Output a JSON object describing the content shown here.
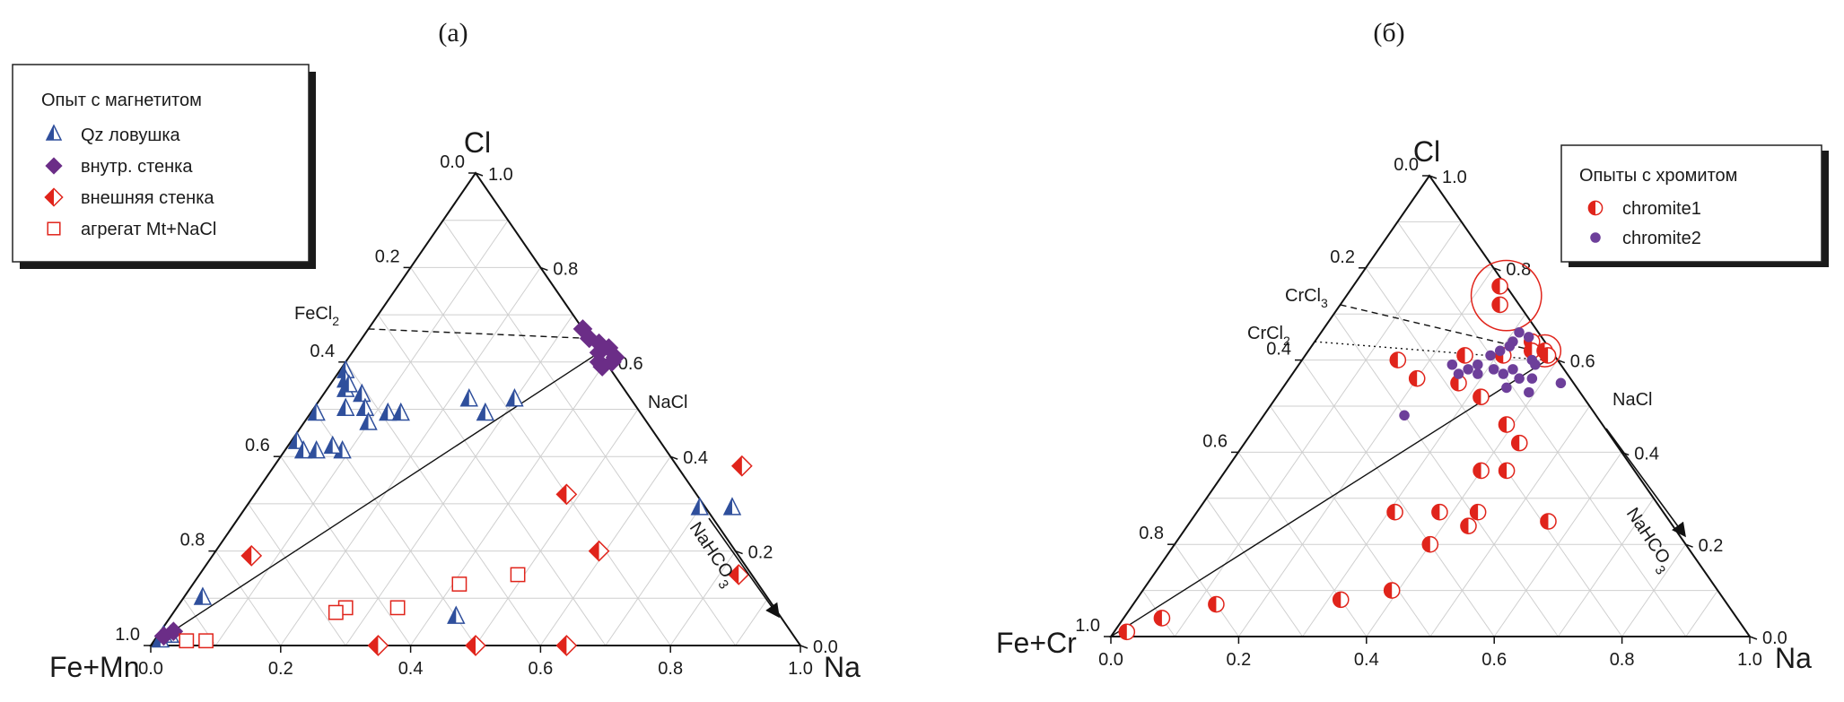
{
  "colors": {
    "blue": "#2f4f9c",
    "purple": "#6b2d87",
    "purple_light": "#6d3f9a",
    "red": "#e0241b",
    "open_square": "#e0241b"
  },
  "chart_data": [
    {
      "type": "scatter",
      "subtype": "ternary",
      "panel_label": "(а)",
      "vertices": {
        "top": "Cl",
        "left": "Fe+Mn",
        "right": "Na"
      },
      "ticks": {
        "cl_axis": [
          "0.0",
          "0.2",
          "0.4",
          "0.6",
          "0.8",
          "1.0"
        ],
        "na_axis": [
          "1.0",
          "0.8",
          "0.6",
          "0.4",
          "0.2",
          "0.0"
        ],
        "bottom_axis": [
          "0.0",
          "0.2",
          "0.4",
          "0.6",
          "0.8",
          "1.0"
        ]
      },
      "annotations": {
        "fecl2": "FeCl",
        "fecl2_sub": "2",
        "nacl": "NaCl",
        "nahco3": "NaHCO",
        "nahco3_sub": "3"
      },
      "legend": {
        "title": "Опыт с магнетитом",
        "placement": "top-left",
        "items": [
          "Qz ловушка",
          "внутр. стенка",
          "внешняя стенка",
          "агрегат Mt+NaCl"
        ]
      },
      "axes_note": "x = Na fraction, y = Cl fraction",
      "series": [
        {
          "name": "Qz ловушка",
          "marker": "half-triangle",
          "points": [
            [
              0.09,
              0.41
            ],
            [
              0.03,
              0.54
            ],
            [
              0.01,
              0.58
            ],
            [
              0.02,
              0.56
            ],
            [
              0.03,
              0.55
            ],
            [
              0.06,
              0.53
            ],
            [
              0.01,
              0.49
            ],
            [
              0.05,
              0.5
            ],
            [
              0.08,
              0.5
            ],
            [
              0.01,
              0.43
            ],
            [
              0.03,
              0.41
            ],
            [
              0.05,
              0.41
            ],
            [
              0.07,
              0.42
            ],
            [
              0.1,
              0.47
            ],
            [
              0.12,
              0.49
            ],
            [
              0.14,
              0.49
            ],
            [
              0.23,
              0.52
            ],
            [
              0.27,
              0.49
            ],
            [
              0.3,
              0.52
            ],
            [
              0.7,
              0.29
            ],
            [
              0.75,
              0.29
            ],
            [
              0.03,
              0.1
            ],
            [
              0.01,
              0.01
            ],
            [
              0.02,
              0.02
            ],
            [
              0.01,
              0.02
            ],
            [
              0.44,
              0.06
            ]
          ]
        },
        {
          "name": "внутр. стенка",
          "marker": "diamond",
          "points": [
            [
              0.33,
              0.67
            ],
            [
              0.35,
              0.65
            ],
            [
              0.37,
              0.64
            ],
            [
              0.38,
              0.62
            ],
            [
              0.39,
              0.6
            ],
            [
              0.4,
              0.59
            ],
            [
              0.41,
              0.6
            ],
            [
              0.41,
              0.61
            ],
            [
              0.39,
              0.63
            ],
            [
              0.02,
              0.03
            ],
            [
              0.01,
              0.02
            ]
          ]
        },
        {
          "name": "внешняя стенка",
          "marker": "half-diamond",
          "points": [
            [
              0.72,
              0.38
            ],
            [
              0.48,
              0.32
            ],
            [
              0.59,
              0.2
            ],
            [
              0.83,
              0.15
            ],
            [
              0.06,
              0.19
            ],
            [
              0.35,
              0.0
            ],
            [
              0.5,
              0.0
            ],
            [
              0.64,
              0.0
            ]
          ]
        },
        {
          "name": "агрегат Mt+NaCl",
          "marker": "open-square",
          "points": [
            [
              0.05,
              0.01
            ],
            [
              0.08,
              0.01
            ],
            [
              0.26,
              0.08
            ],
            [
              0.25,
              0.07
            ],
            [
              0.34,
              0.08
            ],
            [
              0.41,
              0.13
            ],
            [
              0.49,
              0.15
            ]
          ]
        }
      ],
      "lines": [
        {
          "style": "dashed",
          "from": [
            0.0,
            0.67
          ],
          "to": [
            0.35,
            0.65
          ]
        },
        {
          "style": "solid",
          "from": [
            0.0,
            0.0
          ],
          "to": [
            0.38,
            0.62
          ]
        }
      ]
    },
    {
      "type": "scatter",
      "subtype": "ternary",
      "panel_label": "(б)",
      "vertices": {
        "top": "Cl",
        "left": "Fe+Cr",
        "right": "Na"
      },
      "ticks": {
        "cl_axis": [
          "0.0",
          "0.2",
          "0.4",
          "0.6",
          "0.8",
          "1.0"
        ],
        "na_axis": [
          "1.0",
          "0.8",
          "0.6",
          "0.4",
          "0.2",
          "0.0"
        ],
        "bottom_axis": [
          "0.0",
          "0.2",
          "0.4",
          "0.6",
          "0.8",
          "1.0"
        ]
      },
      "annotations": {
        "crcl3": "CrCl",
        "crcl3_sub": "3",
        "crcl2": "CrCl",
        "crcl2_sub": "2",
        "nacl": "NaCl",
        "nahco3": "NaHCO",
        "nahco3_sub": "3"
      },
      "legend": {
        "title": "Опыты с хромитом",
        "placement": "top-right",
        "items": [
          "chromite1",
          "chromite2"
        ]
      },
      "axes_note": "x = Na fraction, y = Cl fraction",
      "series": [
        {
          "name": "chromite1",
          "marker": "half-circle",
          "points": [
            [
              0.23,
              0.76
            ],
            [
              0.25,
              0.72
            ],
            [
              0.34,
              0.64
            ],
            [
              0.35,
              0.62
            ],
            [
              0.37,
              0.62
            ],
            [
              0.38,
              0.61
            ],
            [
              0.31,
              0.61
            ],
            [
              0.25,
              0.61
            ],
            [
              0.15,
              0.6
            ],
            [
              0.2,
              0.56
            ],
            [
              0.27,
              0.55
            ],
            [
              0.32,
              0.52
            ],
            [
              0.39,
              0.46
            ],
            [
              0.43,
              0.42
            ],
            [
              0.44,
              0.36
            ],
            [
              0.4,
              0.36
            ],
            [
              0.44,
              0.27
            ],
            [
              0.38,
              0.27
            ],
            [
              0.31,
              0.27
            ],
            [
              0.56,
              0.25
            ],
            [
              0.4,
              0.2
            ],
            [
              0.44,
              0.24
            ],
            [
              0.39,
              0.1
            ],
            [
              0.32,
              0.08
            ],
            [
              0.13,
              0.07
            ],
            [
              0.06,
              0.04
            ],
            [
              0.02,
              0.01
            ]
          ]
        },
        {
          "name": "chromite2",
          "marker": "circle",
          "points": [
            [
              0.31,
              0.66
            ],
            [
              0.31,
              0.64
            ],
            [
              0.33,
              0.65
            ],
            [
              0.31,
              0.63
            ],
            [
              0.3,
              0.62
            ],
            [
              0.29,
              0.61
            ],
            [
              0.28,
              0.59
            ],
            [
              0.26,
              0.57
            ],
            [
              0.27,
              0.58
            ],
            [
              0.24,
              0.59
            ],
            [
              0.34,
              0.58
            ],
            [
              0.36,
              0.6
            ],
            [
              0.37,
              0.59
            ],
            [
              0.29,
              0.57
            ],
            [
              0.31,
              0.58
            ],
            [
              0.33,
              0.57
            ],
            [
              0.36,
              0.56
            ],
            [
              0.38,
              0.56
            ],
            [
              0.39,
              0.53
            ],
            [
              0.35,
              0.54
            ],
            [
              0.22,
              0.48
            ],
            [
              0.43,
              0.55
            ]
          ]
        }
      ],
      "lines": [
        {
          "style": "dashed",
          "from": [
            0.0,
            0.72
          ],
          "to": [
            0.39,
            0.61
          ]
        },
        {
          "style": "dotted",
          "from": [
            0.0,
            0.64
          ],
          "to": [
            0.38,
            0.6
          ]
        },
        {
          "style": "solid",
          "from": [
            0.0,
            0.0
          ],
          "to": [
            0.39,
            0.61
          ]
        }
      ],
      "highlight_circles": [
        {
          "center": [
            0.25,
            0.74
          ],
          "radius": 0.055
        },
        {
          "center": [
            0.37,
            0.62
          ],
          "radius": 0.025
        }
      ]
    }
  ]
}
